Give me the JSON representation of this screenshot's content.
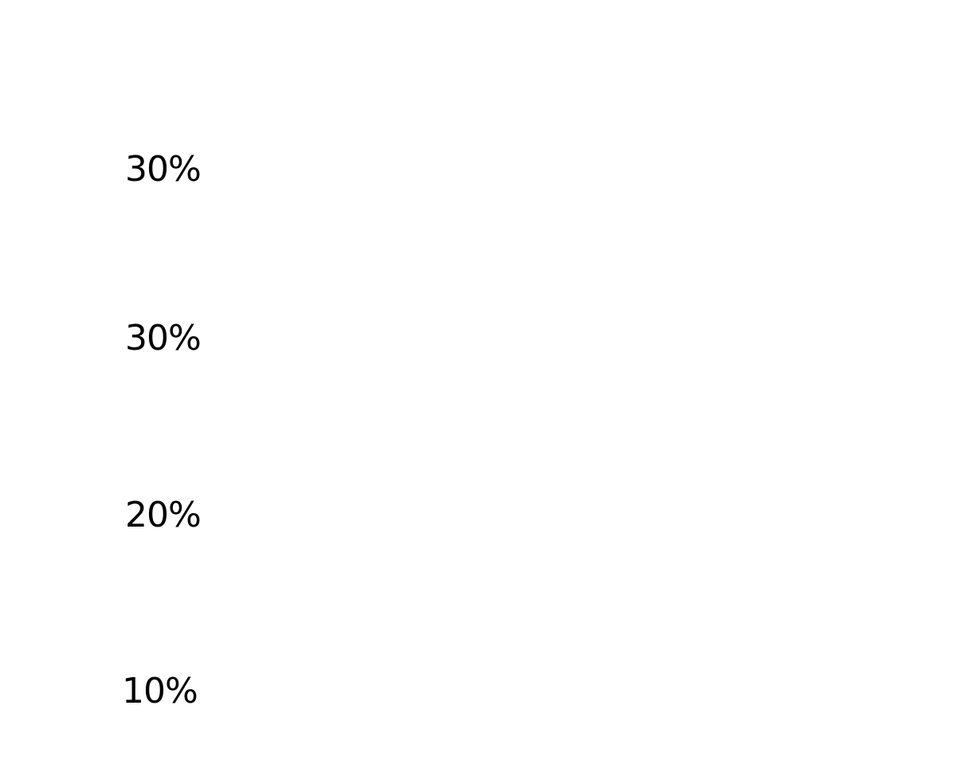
{
  "items": [
    {
      "label": "30%"
    },
    {
      "label": "30%"
    },
    {
      "label": "20%"
    },
    {
      "label": "10%"
    }
  ]
}
